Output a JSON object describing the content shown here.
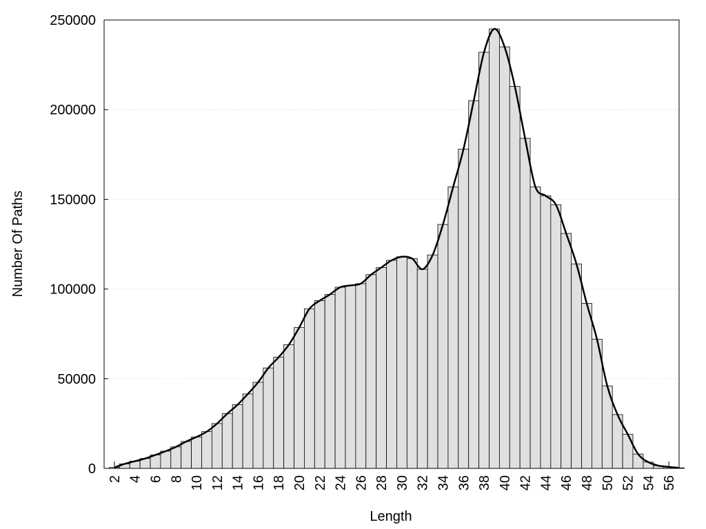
{
  "chart_data": {
    "type": "bar",
    "x_label": "Length",
    "y_label": "Number Of Paths",
    "x": [
      2,
      3,
      4,
      5,
      6,
      7,
      8,
      9,
      10,
      11,
      12,
      13,
      14,
      15,
      16,
      17,
      18,
      19,
      20,
      21,
      22,
      23,
      24,
      25,
      26,
      27,
      28,
      29,
      30,
      31,
      32,
      33,
      34,
      35,
      36,
      37,
      38,
      39,
      40,
      41,
      42,
      43,
      44,
      45,
      46,
      47,
      48,
      49,
      50,
      51,
      52,
      53,
      54,
      55,
      56,
      57
    ],
    "values": [
      500,
      2500,
      4000,
      5500,
      7500,
      9600,
      12000,
      15000,
      17500,
      20500,
      25000,
      30500,
      35500,
      41500,
      48000,
      56000,
      62000,
      69000,
      78500,
      89000,
      93500,
      97000,
      101000,
      102000,
      103000,
      108000,
      112000,
      116000,
      118000,
      117000,
      111000,
      119000,
      136000,
      157000,
      178000,
      205000,
      232000,
      245000,
      235000,
      213000,
      184000,
      157000,
      152000,
      147000,
      131000,
      114000,
      92000,
      72000,
      46000,
      30000,
      19000,
      8000,
      3500,
      1500,
      800,
      300
    ],
    "color": "#e0e0e0",
    "curve": true,
    "curve_color": "#000000",
    "xlim": [
      1,
      57
    ],
    "xticks": [
      2,
      4,
      6,
      8,
      10,
      12,
      14,
      16,
      18,
      20,
      22,
      24,
      26,
      28,
      30,
      32,
      34,
      36,
      38,
      40,
      42,
      44,
      46,
      48,
      50,
      52,
      54,
      56
    ],
    "ylim": [
      0,
      250000
    ],
    "yticks": [
      0,
      50000,
      100000,
      150000,
      200000,
      250000
    ],
    "grid": true
  }
}
